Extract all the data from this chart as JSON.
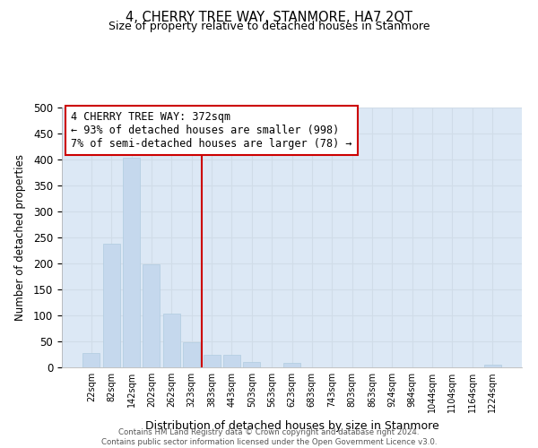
{
  "title": "4, CHERRY TREE WAY, STANMORE, HA7 2QT",
  "subtitle": "Size of property relative to detached houses in Stanmore",
  "bar_heights": [
    27,
    238,
    403,
    198,
    104,
    49,
    25,
    25,
    10,
    0,
    8,
    0,
    0,
    0,
    0,
    0,
    0,
    0,
    0,
    0,
    5
  ],
  "bin_labels": [
    "22sqm",
    "82sqm",
    "142sqm",
    "202sqm",
    "262sqm",
    "323sqm",
    "383sqm",
    "443sqm",
    "503sqm",
    "563sqm",
    "623sqm",
    "683sqm",
    "743sqm",
    "803sqm",
    "863sqm",
    "924sqm",
    "984sqm",
    "1044sqm",
    "1104sqm",
    "1164sqm",
    "1224sqm"
  ],
  "bar_color": "#c5d8ed",
  "bar_edge_color": "#b0cce0",
  "grid_color": "#d0dce8",
  "bg_color": "#dce8f5",
  "vline_x": 5.5,
  "vline_color": "#cc0000",
  "annotation_line1": "4 CHERRY TREE WAY: 372sqm",
  "annotation_line2": "← 93% of detached houses are smaller (998)",
  "annotation_line3": "7% of semi-detached houses are larger (78) →",
  "xlabel": "Distribution of detached houses by size in Stanmore",
  "ylabel": "Number of detached properties",
  "ylim": [
    0,
    500
  ],
  "yticks": [
    0,
    50,
    100,
    150,
    200,
    250,
    300,
    350,
    400,
    450,
    500
  ],
  "footer_line1": "Contains HM Land Registry data © Crown copyright and database right 2024.",
  "footer_line2": "Contains public sector information licensed under the Open Government Licence v3.0.",
  "title_fontsize": 10.5,
  "subtitle_fontsize": 9,
  "ylabel_fontsize": 8.5,
  "xlabel_fontsize": 9
}
